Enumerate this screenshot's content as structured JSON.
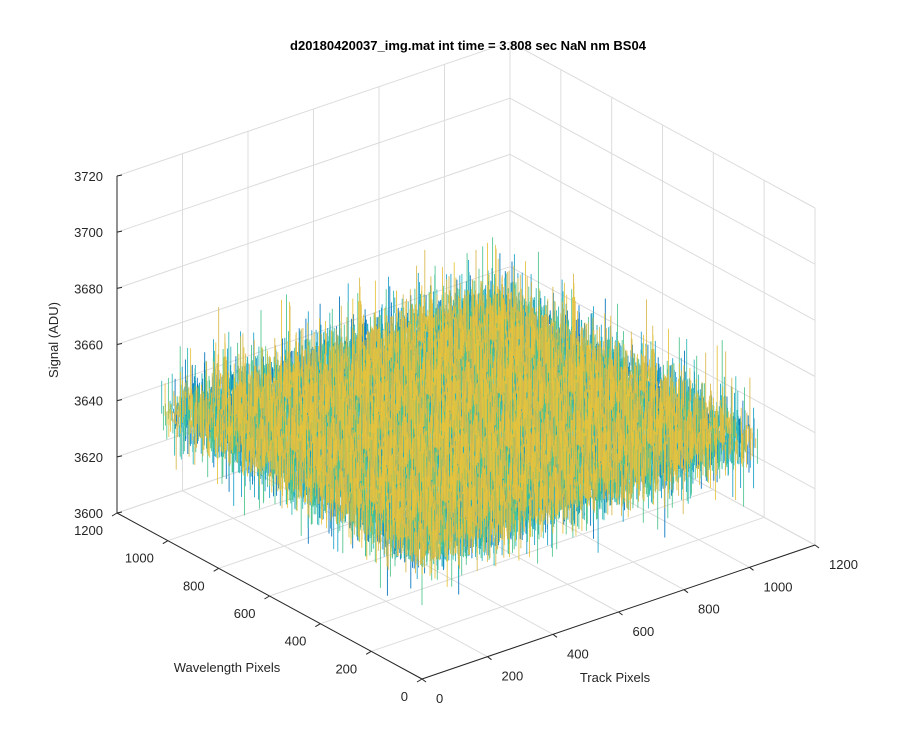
{
  "chart_data": {
    "type": "surface",
    "title": "d20180420037_img.mat int time = 3.808 sec  NaN nm BS04",
    "xlabel": "Track Pixels",
    "ylabel": "Wavelength Pixels",
    "zlabel": "Signal (ADU)",
    "xlim": [
      0,
      1200
    ],
    "ylim": [
      0,
      1200
    ],
    "zlim": [
      3600,
      3720
    ],
    "xticks": [
      "0",
      "200",
      "400",
      "600",
      "800",
      "1000",
      "1200"
    ],
    "yticks": [
      "0",
      "200",
      "400",
      "600",
      "800",
      "1000",
      "1200"
    ],
    "zticks": [
      "3600",
      "3620",
      "3640",
      "3660",
      "3680",
      "3700",
      "3720"
    ],
    "data_extent": {
      "x": [
        0,
        1024
      ],
      "y": [
        0,
        1024
      ]
    },
    "signal_mean": 3645,
    "signal_range": [
      3615,
      3700
    ],
    "grid": true,
    "colormap": [
      "#0072bd",
      "#1aa0c8",
      "#2ab7b5",
      "#4cc48c",
      "#d9b84a",
      "#e7c33c"
    ]
  }
}
